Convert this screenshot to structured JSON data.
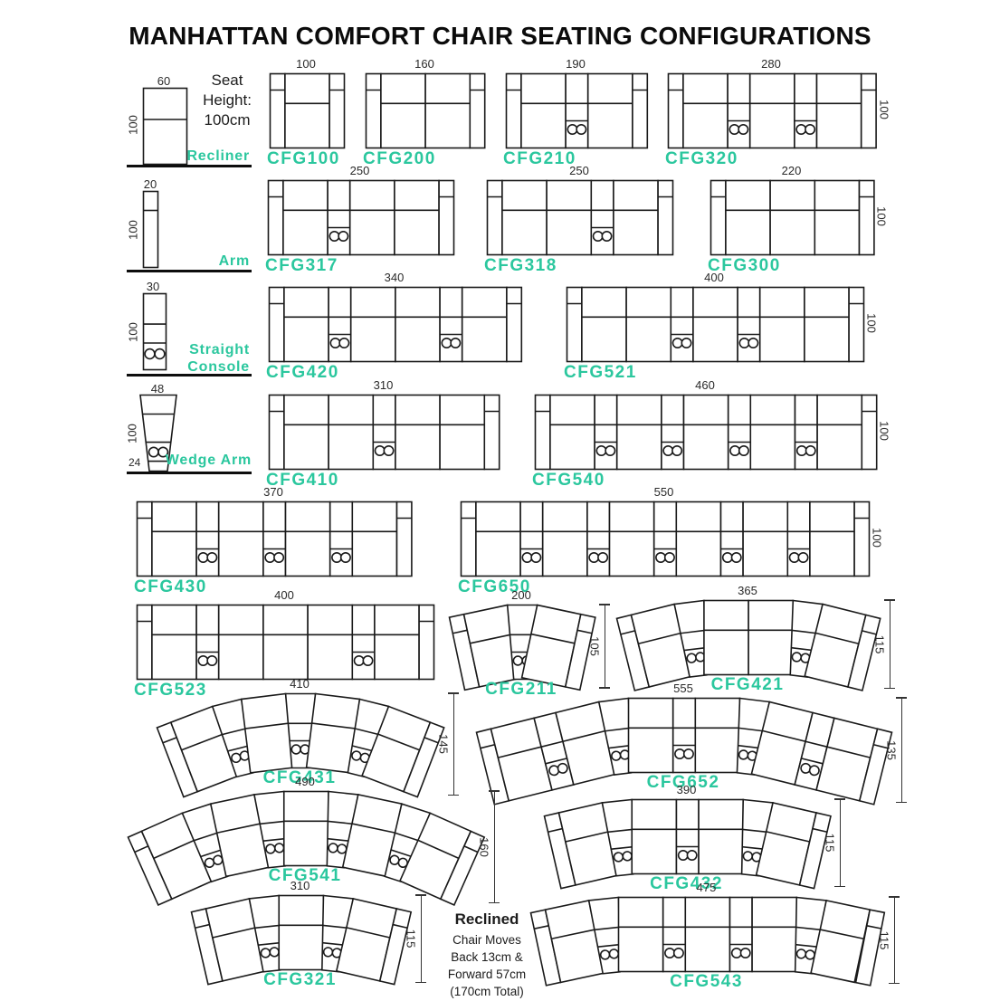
{
  "title": "MANHATTAN COMFORT CHAIR SEATING CONFIGURATIONS",
  "seat_height_note": {
    "lines": [
      "Seat",
      "Height:",
      "100cm"
    ]
  },
  "legend": {
    "recliner": {
      "label": "Recliner",
      "top_dim": "60",
      "side_dim": "100"
    },
    "arm": {
      "label": "Arm",
      "top_dim": "20",
      "side_dim": "100"
    },
    "straight_console": {
      "label_line1": "Straight",
      "label_line2": "Console",
      "top_dim": "30",
      "side_dim": "100"
    },
    "wedge_arm": {
      "label": "Wedge Arm",
      "top_dim": "48",
      "side_dim": "100",
      "bottom_dim": "24"
    }
  },
  "reclined_note": {
    "heading": "Reclined",
    "lines": [
      "Chair Moves",
      "Back 13cm &",
      "Forward 57cm",
      "(170cm Total)"
    ]
  },
  "colors": {
    "accent": "#2bc79e",
    "line": "#1a1a1a",
    "text": "#2a2a2a"
  },
  "configs": [
    {
      "name": "CFG100",
      "width_label": "100",
      "units": [
        "arm",
        "seat",
        "arm"
      ]
    },
    {
      "name": "CFG200",
      "width_label": "160",
      "units": [
        "arm",
        "seat",
        "seat",
        "arm"
      ]
    },
    {
      "name": "CFG210",
      "width_label": "190",
      "units": [
        "arm",
        "seat",
        "console",
        "seat",
        "arm"
      ]
    },
    {
      "name": "CFG320",
      "width_label": "280",
      "height_label": "100",
      "units": [
        "arm",
        "seat",
        "console",
        "seat",
        "console",
        "seat",
        "arm"
      ]
    },
    {
      "name": "CFG317",
      "width_label": "250",
      "units": [
        "arm",
        "seat",
        "console",
        "seat",
        "seat",
        "arm"
      ]
    },
    {
      "name": "CFG318",
      "width_label": "250",
      "units": [
        "arm",
        "seat",
        "seat",
        "console",
        "seat",
        "arm"
      ]
    },
    {
      "name": "CFG300",
      "width_label": "220",
      "height_label": "100",
      "units": [
        "arm",
        "seat",
        "seat",
        "seat",
        "arm"
      ]
    },
    {
      "name": "CFG420",
      "width_label": "340",
      "units": [
        "arm",
        "seat",
        "console",
        "seat",
        "seat",
        "console",
        "seat",
        "arm"
      ]
    },
    {
      "name": "CFG521",
      "width_label": "400",
      "height_label": "100",
      "units": [
        "arm",
        "seat",
        "seat",
        "console",
        "seat",
        "console",
        "seat",
        "seat",
        "arm"
      ]
    },
    {
      "name": "CFG410",
      "width_label": "310",
      "units": [
        "arm",
        "seat",
        "seat",
        "console",
        "seat",
        "seat",
        "arm"
      ]
    },
    {
      "name": "CFG540",
      "width_label": "460",
      "height_label": "100",
      "units": [
        "arm",
        "seat",
        "console",
        "seat",
        "console",
        "seat",
        "console",
        "seat",
        "console",
        "seat",
        "arm"
      ]
    },
    {
      "name": "CFG430",
      "width_label": "370",
      "units": [
        "arm",
        "seat",
        "console",
        "seat",
        "console",
        "seat",
        "console",
        "seat",
        "arm"
      ]
    },
    {
      "name": "CFG650",
      "width_label": "550",
      "height_label": "100",
      "units": [
        "arm",
        "seat",
        "console",
        "seat",
        "console",
        "seat",
        "console",
        "seat",
        "console",
        "seat",
        "console",
        "seat",
        "arm"
      ]
    },
    {
      "name": "CFG523",
      "width_label": "400",
      "units": [
        "arm",
        "seat",
        "console",
        "seat",
        "seat",
        "seat",
        "console",
        "seat",
        "arm"
      ]
    },
    {
      "name": "CFG211",
      "width_label": "200",
      "height_label": "105",
      "units": [
        "arm",
        "seat",
        "wedge",
        "seat",
        "arm"
      ]
    },
    {
      "name": "CFG421",
      "width_label": "365",
      "height_label": "115",
      "units": [
        "arm",
        "seat",
        "wedge",
        "seat",
        "seat",
        "wedge",
        "seat",
        "arm"
      ]
    },
    {
      "name": "CFG431",
      "width_label": "410",
      "height_label": "145",
      "units": [
        "arm",
        "seat",
        "wedge",
        "seat",
        "wedge",
        "seat",
        "wedge",
        "seat",
        "arm"
      ]
    },
    {
      "name": "CFG652",
      "width_label": "555",
      "height_label": "135",
      "units": [
        "arm",
        "seat",
        "console",
        "seat",
        "wedge",
        "seat",
        "console",
        "seat",
        "wedge",
        "seat",
        "console",
        "seat",
        "arm"
      ]
    },
    {
      "name": "CFG541",
      "width_label": "490",
      "height_label": "160",
      "units": [
        "arm",
        "seat",
        "wedge",
        "seat",
        "wedge",
        "seat",
        "wedge",
        "seat",
        "wedge",
        "seat",
        "arm"
      ]
    },
    {
      "name": "CFG432",
      "width_label": "390",
      "height_label": "115",
      "units": [
        "arm",
        "seat",
        "wedge",
        "seat",
        "console",
        "seat",
        "wedge",
        "seat",
        "arm"
      ]
    },
    {
      "name": "CFG321",
      "width_label": "310",
      "height_label": "115",
      "units": [
        "arm",
        "seat",
        "wedge",
        "seat",
        "wedge",
        "seat",
        "arm"
      ]
    },
    {
      "name": "CFG543",
      "width_label": "475",
      "height_label": "115",
      "units": [
        "arm",
        "seat",
        "wedge",
        "seat",
        "console",
        "seat",
        "console",
        "seat",
        "wedge",
        "seat",
        "arm"
      ]
    }
  ]
}
